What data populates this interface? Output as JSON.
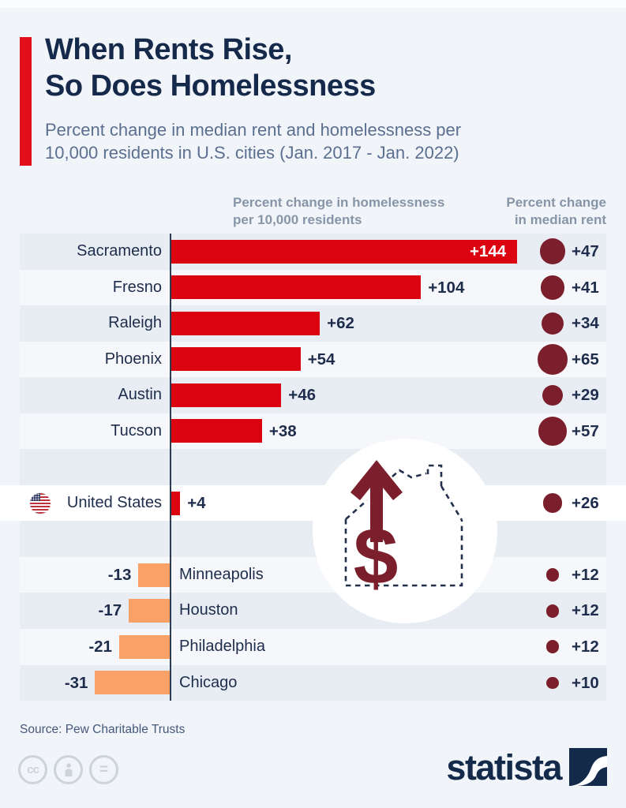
{
  "page": {
    "background": "#f1f4f8"
  },
  "header": {
    "accent_color": "#e2101b",
    "title_line1": "When Rents Rise,",
    "title_line2": "So Does Homelessness",
    "subtitle_line1": "Percent change in median rent and homelessness per",
    "subtitle_line2": "10,000 residents in U.S. cities (Jan. 2017 - Jan. 2022)"
  },
  "columns": {
    "left_line1": "Percent change in homelessness",
    "left_line2": "per 10,000 residents",
    "right_line1": "Percent change",
    "right_line2": "in median rent"
  },
  "chart_data": {
    "type": "bar",
    "title": "When Rents Rise, So Does Homelessness",
    "subtitle": "Percent change in median rent and homelessness per 10,000 residents in U.S. cities (Jan. 2017 - Jan. 2022)",
    "categories": [
      "Sacramento",
      "Fresno",
      "Raleigh",
      "Phoenix",
      "Austin",
      "Tucson",
      "United States",
      "Minneapolis",
      "Houston",
      "Philadelphia",
      "Chicago"
    ],
    "series": [
      {
        "name": "Percent change in homelessness per 10,000 residents",
        "values": [
          144,
          104,
          62,
          54,
          46,
          38,
          4,
          -13,
          -17,
          -21,
          -31
        ]
      },
      {
        "name": "Percent change in median rent",
        "values": [
          47,
          41,
          34,
          65,
          29,
          57,
          26,
          12,
          12,
          12,
          10
        ]
      }
    ],
    "rows": [
      {
        "city": "Sacramento",
        "homelessness": 144,
        "rent": 47
      },
      {
        "city": "Fresno",
        "homelessness": 104,
        "rent": 41
      },
      {
        "city": "Raleigh",
        "homelessness": 62,
        "rent": 34
      },
      {
        "city": "Phoenix",
        "homelessness": 54,
        "rent": 65
      },
      {
        "city": "Austin",
        "homelessness": 46,
        "rent": 29
      },
      {
        "city": "Tucson",
        "homelessness": 38,
        "rent": 57
      },
      {
        "city": "United States",
        "homelessness": 4,
        "rent": 26,
        "highlight": true,
        "flag": true
      },
      {
        "city": "Minneapolis",
        "homelessness": -13,
        "rent": 12
      },
      {
        "city": "Houston",
        "homelessness": -17,
        "rent": 12
      },
      {
        "city": "Philadelphia",
        "homelessness": -21,
        "rent": 12
      },
      {
        "city": "Chicago",
        "homelessness": -31,
        "rent": 10
      }
    ],
    "value_prefix_positive": "+",
    "colors": {
      "bar_positive": "#da030f",
      "bar_negative": "#f9a166",
      "bubble": "#7c1f2c",
      "axis": "#2c3a52",
      "highlight_row": "#ffffff",
      "row_stripe": "#e8edf4"
    },
    "legend_position": "top",
    "grid": false
  },
  "decoration": {
    "icon": "house-rising-rent-icon"
  },
  "footer": {
    "source": "Source: Pew Charitable Trusts",
    "brand": "statista",
    "license_icons": [
      "cc",
      "attribution",
      "no-derivatives"
    ]
  }
}
